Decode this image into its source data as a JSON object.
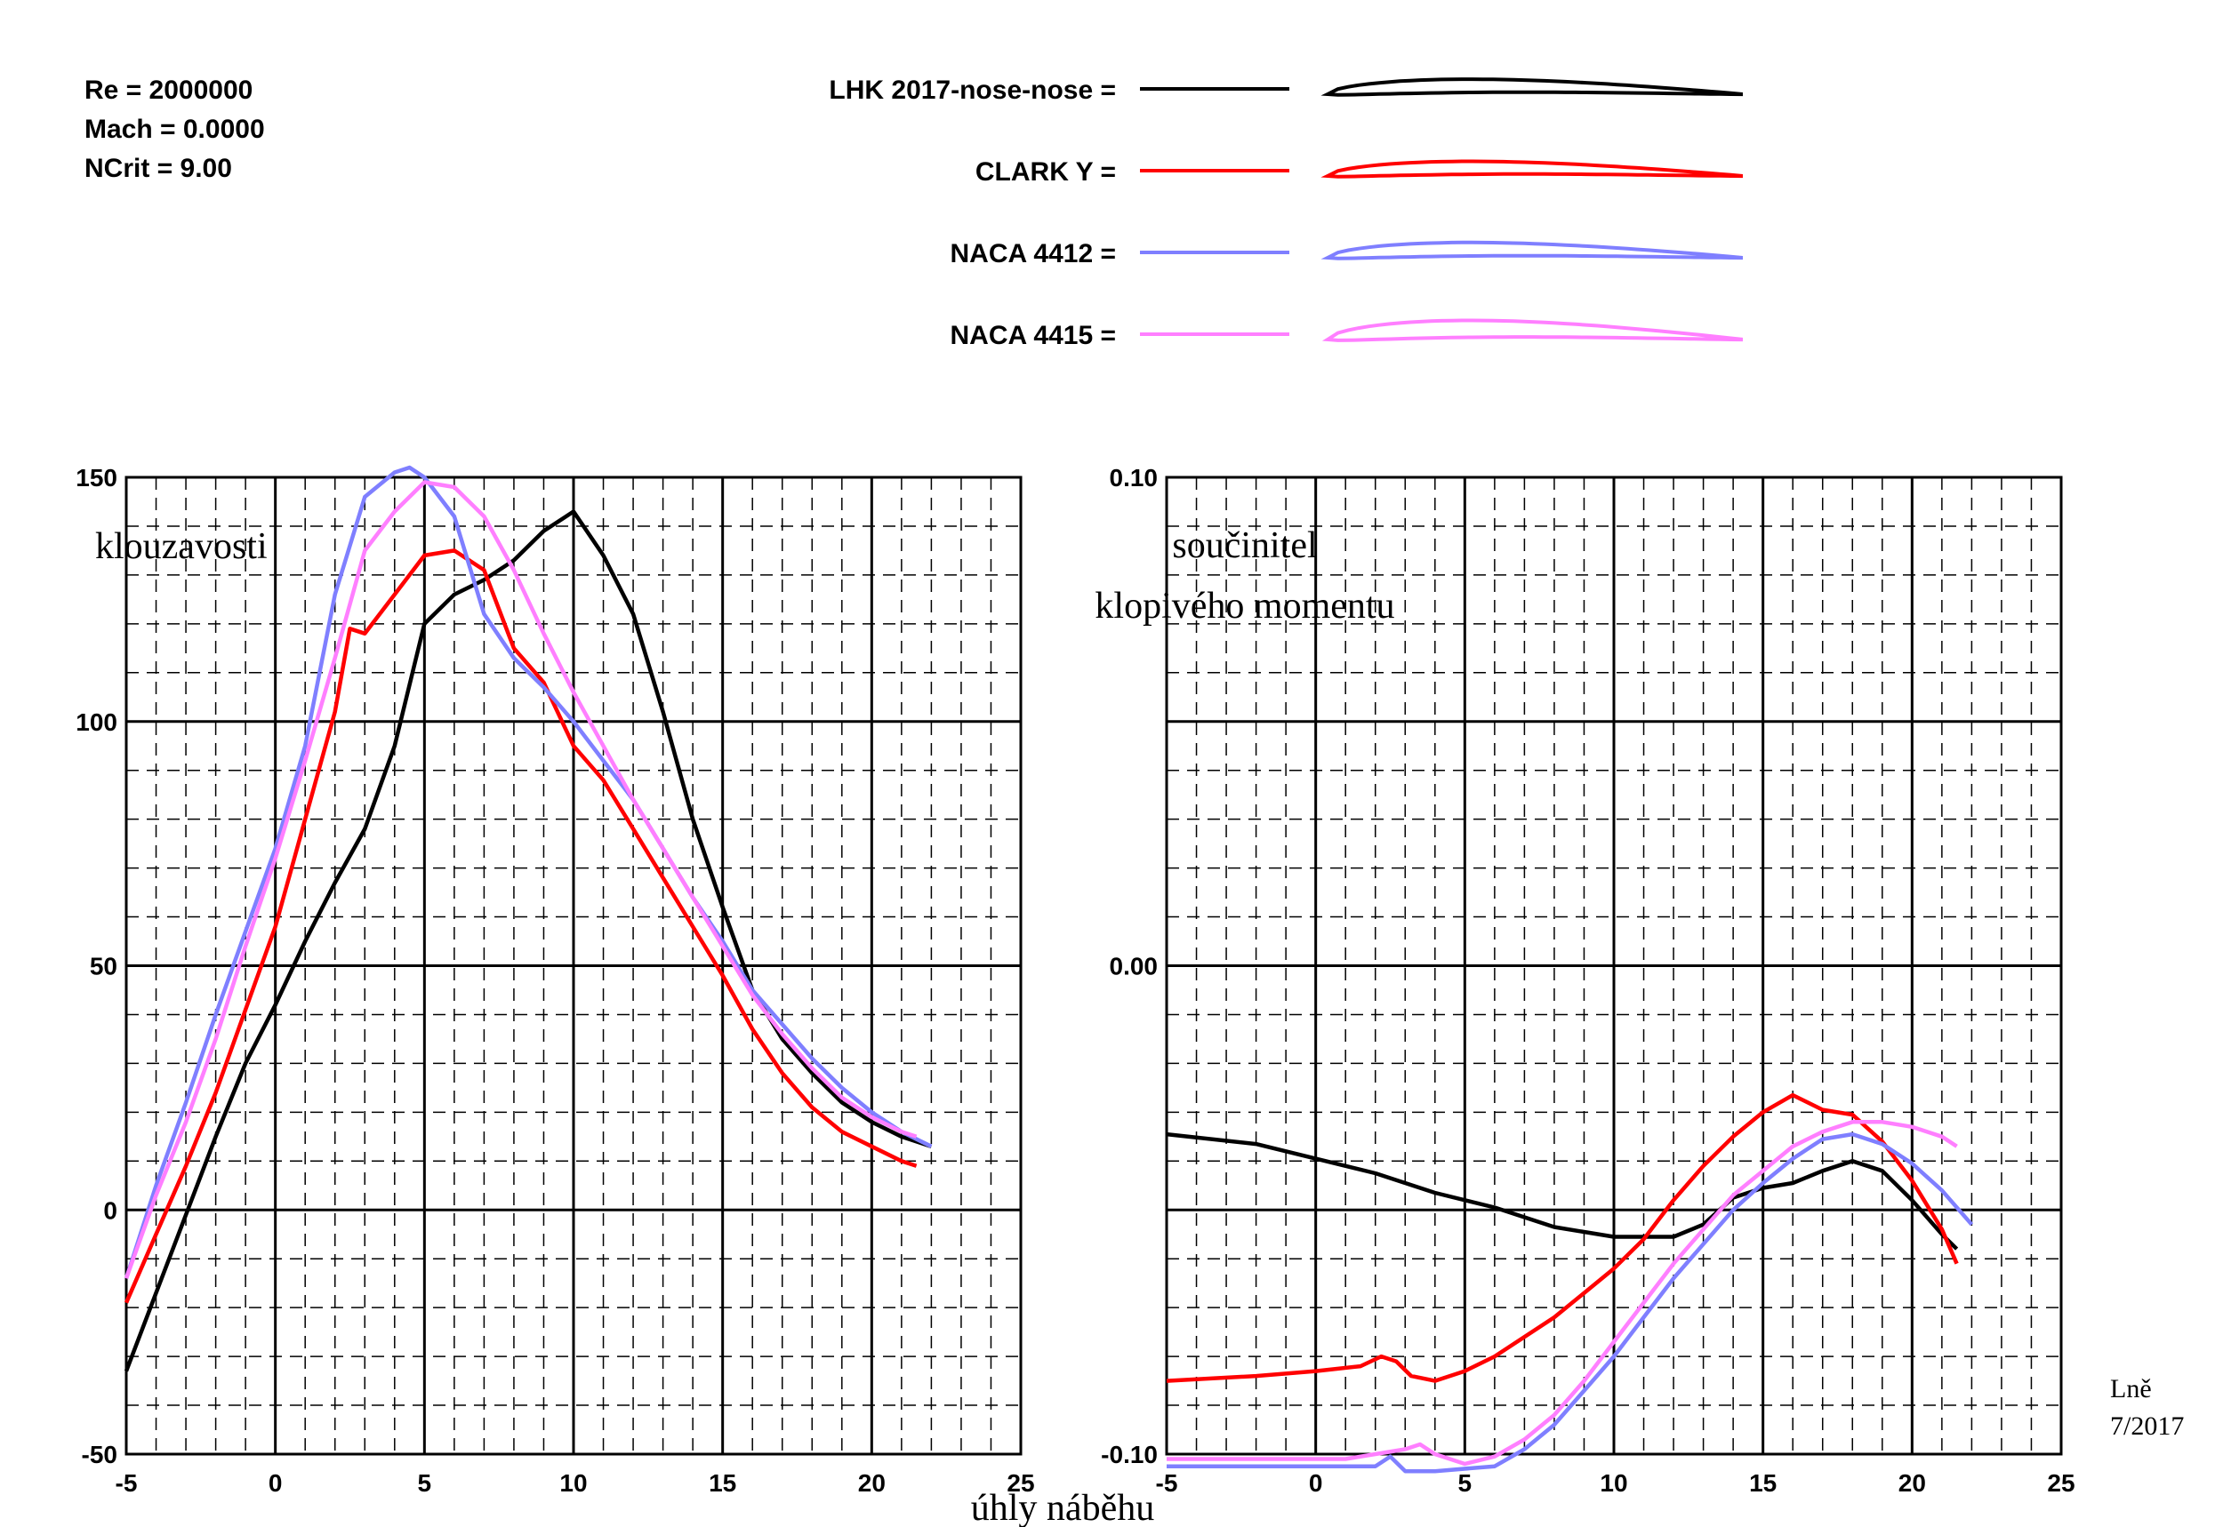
{
  "info": {
    "re": "Re = 2000000",
    "mach": "Mach = 0.0000",
    "ncrit": "NCrit = 9.00"
  },
  "legend": [
    {
      "label": "LHK 2017-nose-nose =",
      "color": "#000000"
    },
    {
      "label": "CLARK Y =",
      "color": "#ff0000"
    },
    {
      "label": "NACA 4412 =",
      "color": "#7f7fff"
    },
    {
      "label": "NACA 4415 =",
      "color": "#ff7fff"
    }
  ],
  "annotations": {
    "x_axis_label": "úhly náběhu",
    "author": "Lně",
    "date": "7/2017"
  },
  "chart_data": [
    {
      "type": "line",
      "ylabel": "klouzavosti",
      "xlim": [
        -5,
        25
      ],
      "ylim": [
        -50,
        150
      ],
      "xticks": [
        "-5",
        "0",
        "5",
        "10",
        "15",
        "20",
        "25"
      ],
      "yticks": [
        "-50",
        "0",
        "50",
        "100",
        "150"
      ],
      "grid": true,
      "series": [
        {
          "name": "LHK 2017-nose-nose",
          "color": "#000000",
          "x": [
            -5,
            -4,
            -3,
            -2,
            -1,
            0,
            1,
            2,
            3,
            4,
            5,
            6,
            7,
            8,
            9,
            10,
            11,
            12,
            13,
            14,
            15,
            16,
            17,
            18,
            19,
            20,
            21,
            22
          ],
          "y": [
            -33,
            -17,
            -1,
            15,
            30,
            42,
            55,
            67,
            78,
            95,
            120,
            126,
            129,
            133,
            139,
            143,
            134,
            122,
            102,
            80,
            62,
            45,
            35,
            28,
            22,
            18,
            15,
            13
          ]
        },
        {
          "name": "CLARK Y",
          "color": "#ff0000",
          "x": [
            -5,
            -4,
            -3,
            -2,
            -1,
            0,
            1,
            2,
            2.5,
            3,
            4,
            5,
            6,
            7,
            8,
            9,
            10,
            11,
            12,
            13,
            14,
            15,
            16,
            17,
            18,
            19,
            20,
            21,
            21.5
          ],
          "y": [
            -19,
            -5,
            9,
            24,
            41,
            58,
            80,
            102,
            119,
            118,
            126,
            134,
            135,
            131,
            115,
            108,
            95,
            88,
            78,
            68,
            58,
            48,
            37,
            28,
            21,
            16,
            13,
            10,
            9
          ]
        },
        {
          "name": "NACA 4412",
          "color": "#7f7fff",
          "x": [
            -5,
            -4,
            -3,
            -2,
            -1,
            0,
            1,
            2,
            3,
            4,
            4.5,
            5,
            6,
            7,
            8,
            9,
            10,
            11,
            12,
            13,
            14,
            15,
            16,
            17,
            18,
            19,
            20,
            21,
            22
          ],
          "y": [
            -14,
            5,
            22,
            40,
            57,
            74,
            95,
            126,
            146,
            151,
            152,
            150,
            142,
            122,
            113,
            107,
            100,
            92,
            84,
            74,
            64,
            55,
            45,
            38,
            31,
            25,
            20,
            16,
            13
          ]
        },
        {
          "name": "NACA 4415",
          "color": "#ff7fff",
          "x": [
            -5,
            -4,
            -3,
            -2,
            -1,
            0,
            1,
            2,
            3,
            4,
            5,
            6,
            7,
            8,
            9,
            10,
            11,
            12,
            13,
            14,
            15,
            16,
            17,
            18,
            19,
            20,
            21,
            21.5
          ],
          "y": [
            -14,
            3,
            18,
            35,
            54,
            72,
            92,
            113,
            135,
            143,
            149,
            148,
            142,
            131,
            118,
            106,
            95,
            84,
            74,
            64,
            54,
            44,
            36,
            29,
            23,
            19,
            16,
            15
          ]
        }
      ]
    },
    {
      "type": "line",
      "ylabel": "součinitel klopivého momentu",
      "xlim": [
        -5,
        25
      ],
      "ylim": [
        -0.1,
        0.1
      ],
      "xticks": [
        "-5",
        "0",
        "5",
        "10",
        "15",
        "20",
        "25"
      ],
      "yticks": [
        "-0.10",
        "0.00",
        "0.10"
      ],
      "grid": true,
      "series": [
        {
          "name": "LHK 2017-nose-nose",
          "color": "#000000",
          "x": [
            -5,
            -2,
            0,
            2,
            4,
            6,
            8,
            10,
            11,
            12,
            13,
            14,
            15,
            16,
            17,
            18,
            19,
            20,
            21,
            21.5
          ],
          "y": [
            -0.0345,
            -0.0365,
            -0.0395,
            -0.0425,
            -0.0465,
            -0.0495,
            -0.0535,
            -0.0555,
            -0.0555,
            -0.0555,
            -0.053,
            -0.0475,
            -0.0455,
            -0.0445,
            -0.042,
            -0.04,
            -0.042,
            -0.048,
            -0.055,
            -0.058
          ]
        },
        {
          "name": "CLARK Y",
          "color": "#ff0000",
          "x": [
            -5,
            -2,
            0,
            1.5,
            2.2,
            2.7,
            3.2,
            4,
            5,
            6,
            7,
            8,
            9,
            10,
            11,
            12,
            13,
            14,
            15,
            16,
            17,
            18,
            19,
            20,
            21,
            21.5
          ],
          "y": [
            -0.085,
            -0.084,
            -0.083,
            -0.082,
            -0.08,
            -0.081,
            -0.084,
            -0.085,
            -0.083,
            -0.08,
            -0.076,
            -0.072,
            -0.067,
            -0.062,
            -0.056,
            -0.048,
            -0.041,
            -0.035,
            -0.03,
            -0.0265,
            -0.0295,
            -0.0305,
            -0.036,
            -0.044,
            -0.054,
            -0.061
          ]
        },
        {
          "name": "NACA 4412",
          "color": "#7f7fff",
          "x": [
            -5,
            -2,
            2,
            2.5,
            3,
            4,
            6,
            7,
            8,
            9,
            10,
            11,
            12,
            13,
            14,
            15,
            16,
            17,
            18,
            19,
            20,
            21,
            22
          ],
          "y": [
            -0.1025,
            -0.1025,
            -0.1025,
            -0.1005,
            -0.1035,
            -0.1035,
            -0.1025,
            -0.099,
            -0.094,
            -0.087,
            -0.08,
            -0.072,
            -0.064,
            -0.057,
            -0.05,
            -0.0445,
            -0.0395,
            -0.0355,
            -0.0345,
            -0.0365,
            -0.0405,
            -0.046,
            -0.053
          ]
        },
        {
          "name": "NACA 4415",
          "color": "#ff7fff",
          "x": [
            -5,
            -2,
            1,
            2,
            3,
            3.5,
            4,
            5,
            6,
            7,
            8,
            9,
            10,
            11,
            12,
            13,
            14,
            15,
            16,
            17,
            18,
            19,
            20,
            21,
            21.5
          ],
          "y": [
            -0.101,
            -0.101,
            -0.101,
            -0.1,
            -0.099,
            -0.098,
            -0.1,
            -0.102,
            -0.1005,
            -0.097,
            -0.092,
            -0.085,
            -0.077,
            -0.069,
            -0.061,
            -0.054,
            -0.047,
            -0.042,
            -0.037,
            -0.034,
            -0.032,
            -0.032,
            -0.033,
            -0.035,
            -0.037
          ]
        }
      ]
    }
  ]
}
